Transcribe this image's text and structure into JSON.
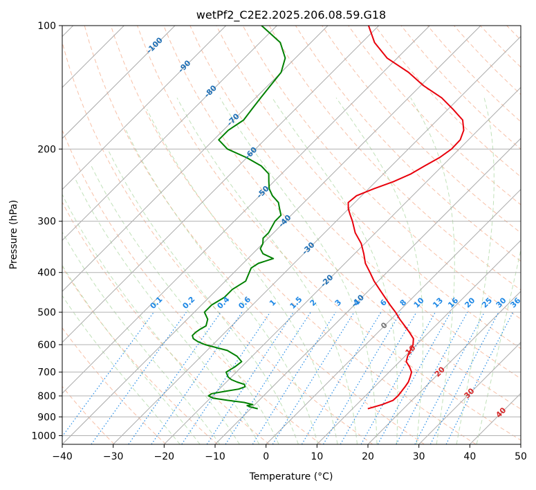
{
  "chart_data": {
    "type": "line",
    "chart_kind": "skew-T log-P diagram",
    "title": "wetPf2_C2E2.2025.206.08.59.G18",
    "xlabel": "Temperature (°C)",
    "ylabel": "Pressure (hPa)",
    "xlim": [
      -40,
      50
    ],
    "ylim_hpa": [
      1050,
      100
    ],
    "y_scale": "log",
    "x_ticks": [
      "−40",
      "−30",
      "−20",
      "−10",
      "0",
      "10",
      "20",
      "30",
      "40",
      "50"
    ],
    "y_ticks": [
      {
        "p": 100,
        "label": "100"
      },
      {
        "p": 200,
        "label": "200"
      },
      {
        "p": 300,
        "label": "300"
      },
      {
        "p": 400,
        "label": "400"
      },
      {
        "p": 500,
        "label": "500"
      },
      {
        "p": 600,
        "label": "600"
      },
      {
        "p": 700,
        "label": "700"
      },
      {
        "p": 800,
        "label": "800"
      },
      {
        "p": 900,
        "label": "900"
      },
      {
        "p": 1000,
        "label": "1000"
      }
    ],
    "grid": true,
    "colors": {
      "temperature": "#e8000b",
      "dewpoint": "#008000",
      "isotherm": "#aaaaaa",
      "dry_adiabat": "#f4a582",
      "moist_adiabat": "#a6d49b",
      "mixing_ratio": "#1e88e5",
      "isotherm_label": "#1f6fb5",
      "dry_adiabat_label": "#d62728",
      "zero_label": "#777777"
    },
    "series": [
      {
        "name": "Temperature",
        "pressure": [
          860,
          840,
          820,
          800,
          780,
          760,
          740,
          720,
          700,
          680,
          660,
          640,
          620,
          600,
          580,
          560,
          540,
          520,
          500,
          480,
          460,
          440,
          420,
          400,
          380,
          360,
          340,
          320,
          300,
          290,
          280,
          270,
          260,
          250,
          240,
          230,
          220,
          210,
          200,
          190,
          180,
          170,
          160,
          150,
          140,
          130,
          120,
          110,
          100
        ],
        "temp_c": [
          13.0,
          15.0,
          16.3,
          16.4,
          16.2,
          16.0,
          15.7,
          15.1,
          14.4,
          13.0,
          11.3,
          10.5,
          9.9,
          9.3,
          8.2,
          6.2,
          4.0,
          1.7,
          -0.5,
          -3.0,
          -5.5,
          -8.1,
          -10.8,
          -13.3,
          -16.0,
          -18.2,
          -20.7,
          -24.0,
          -26.8,
          -28.4,
          -30.0,
          -31.3,
          -31.0,
          -29.0,
          -26.5,
          -24.6,
          -23.5,
          -22.2,
          -21.5,
          -21.6,
          -22.8,
          -25.0,
          -29.0,
          -33.5,
          -39.5,
          -45.0,
          -52.0,
          -57.5,
          -62.0
        ]
      },
      {
        "name": "Dewpoint",
        "pressure": [
          860,
          850,
          845,
          840,
          830,
          820,
          810,
          800,
          790,
          780,
          770,
          760,
          750,
          740,
          730,
          720,
          700,
          680,
          660,
          640,
          620,
          600,
          590,
          580,
          570,
          560,
          550,
          540,
          520,
          500,
          480,
          460,
          440,
          420,
          400,
          390,
          380,
          370,
          360,
          350,
          340,
          330,
          320,
          300,
          290,
          280,
          270,
          260,
          250,
          240,
          230,
          220,
          210,
          200,
          190,
          180,
          170,
          160,
          150,
          140,
          130,
          120,
          110,
          100
        ],
        "temp_c": [
          -8.6,
          -10.6,
          -11.3,
          -10.4,
          -12.5,
          -16.2,
          -19.5,
          -20.8,
          -20.6,
          -18.5,
          -16.2,
          -15.4,
          -16.0,
          -17.9,
          -19.5,
          -20.6,
          -22.0,
          -21.3,
          -21.0,
          -23.0,
          -26.0,
          -31.5,
          -33.5,
          -35.0,
          -35.8,
          -35.8,
          -35.5,
          -35.0,
          -36.0,
          -38.0,
          -38.0,
          -37.0,
          -37.0,
          -36.0,
          -37.0,
          -37.5,
          -37.0,
          -35.0,
          -38.0,
          -39.5,
          -40.0,
          -41.0,
          -41.0,
          -42.0,
          -42.0,
          -43.5,
          -45.0,
          -47.5,
          -49.5,
          -51.0,
          -52.5,
          -55.5,
          -60.0,
          -65.5,
          -69.0,
          -69.0,
          -68.0,
          -68.5,
          -69.0,
          -69.5,
          -70.0,
          -72.0,
          -76.0,
          -83.0
        ]
      }
    ],
    "isotherm_labels": [
      {
        "t": -100,
        "p": 112,
        "label": "-100"
      },
      {
        "t": -90,
        "p": 126,
        "label": "-90"
      },
      {
        "t": -80,
        "p": 145,
        "label": "-80"
      },
      {
        "t": -70,
        "p": 170,
        "label": "-70"
      },
      {
        "t": -60,
        "p": 205,
        "label": "-60"
      },
      {
        "t": -50,
        "p": 255,
        "label": "-50"
      },
      {
        "t": -40,
        "p": 300,
        "label": "-40"
      },
      {
        "t": -30,
        "p": 350,
        "label": "-30"
      },
      {
        "t": -20,
        "p": 420,
        "label": "-20"
      },
      {
        "t": -10,
        "p": 470,
        "label": "-10"
      }
    ],
    "mixing_ratio_labels": [
      {
        "w": 0.1,
        "label": "0.1"
      },
      {
        "w": 0.2,
        "label": "0.2"
      },
      {
        "w": 0.4,
        "label": "0.4"
      },
      {
        "w": 0.6,
        "label": "0.6"
      },
      {
        "w": 1,
        "label": "1"
      },
      {
        "w": 1.5,
        "label": "1.5"
      },
      {
        "w": 2,
        "label": "2"
      },
      {
        "w": 3,
        "label": "3"
      },
      {
        "w": 4,
        "label": "4"
      },
      {
        "w": 6,
        "label": "6"
      },
      {
        "w": 8,
        "label": "8"
      },
      {
        "w": 10,
        "label": "10"
      },
      {
        "w": 13,
        "label": "13"
      },
      {
        "w": 16,
        "label": "16"
      },
      {
        "w": 20,
        "label": "20"
      },
      {
        "w": 25,
        "label": "25"
      },
      {
        "w": 30,
        "label": "30"
      },
      {
        "w": 36,
        "label": "36"
      }
    ],
    "dry_adiabat_labels": [
      {
        "t": 0,
        "p": 540,
        "label": "0"
      },
      {
        "t": 10,
        "p": 620,
        "label": "10"
      },
      {
        "t": 20,
        "p": 700,
        "label": "20"
      },
      {
        "t": 30,
        "p": 790,
        "label": "30"
      },
      {
        "t": 40,
        "p": 880,
        "label": "40"
      }
    ]
  }
}
